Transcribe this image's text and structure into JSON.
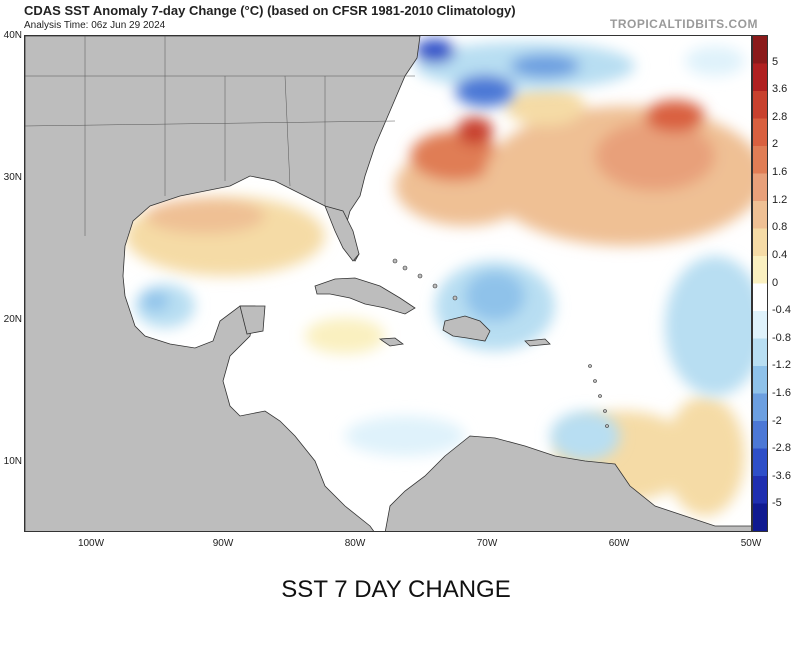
{
  "header": {
    "title": "CDAS SST Anomaly 7-day Change (°C) (based on CFSR 1981-2010 Climatology)",
    "analysis_time": "Analysis Time: 06z Jun 29 2024",
    "brand": "TROPICALTIDBITS.COM"
  },
  "axes": {
    "lat_labels": [
      "40N",
      "30N",
      "20N",
      "10N"
    ],
    "lon_labels": [
      "100W",
      "90W",
      "80W",
      "70W",
      "60W",
      "50W"
    ]
  },
  "colorbar": {
    "labels": [
      "5",
      "3.6",
      "2.8",
      "2",
      "1.6",
      "1.2",
      "0.8",
      "0.4",
      "0",
      "-0.4",
      "-0.8",
      "-1.2",
      "-1.6",
      "-2",
      "-2.8",
      "-3.6",
      "-5"
    ],
    "colors": [
      "#8b1a1a",
      "#b02020",
      "#c8412e",
      "#d9603f",
      "#e07d55",
      "#e8a07a",
      "#efc094",
      "#f5dba6",
      "#faf0c0",
      "#ffffff",
      "#dff2fb",
      "#b8def2",
      "#8fc2ea",
      "#6c9fe0",
      "#4c78d6",
      "#2e4fc8",
      "#1f2fb0",
      "#101a90"
    ],
    "icons": [
      "colorbar-gradient"
    ]
  },
  "caption": "SST 7 DAY CHANGE"
}
